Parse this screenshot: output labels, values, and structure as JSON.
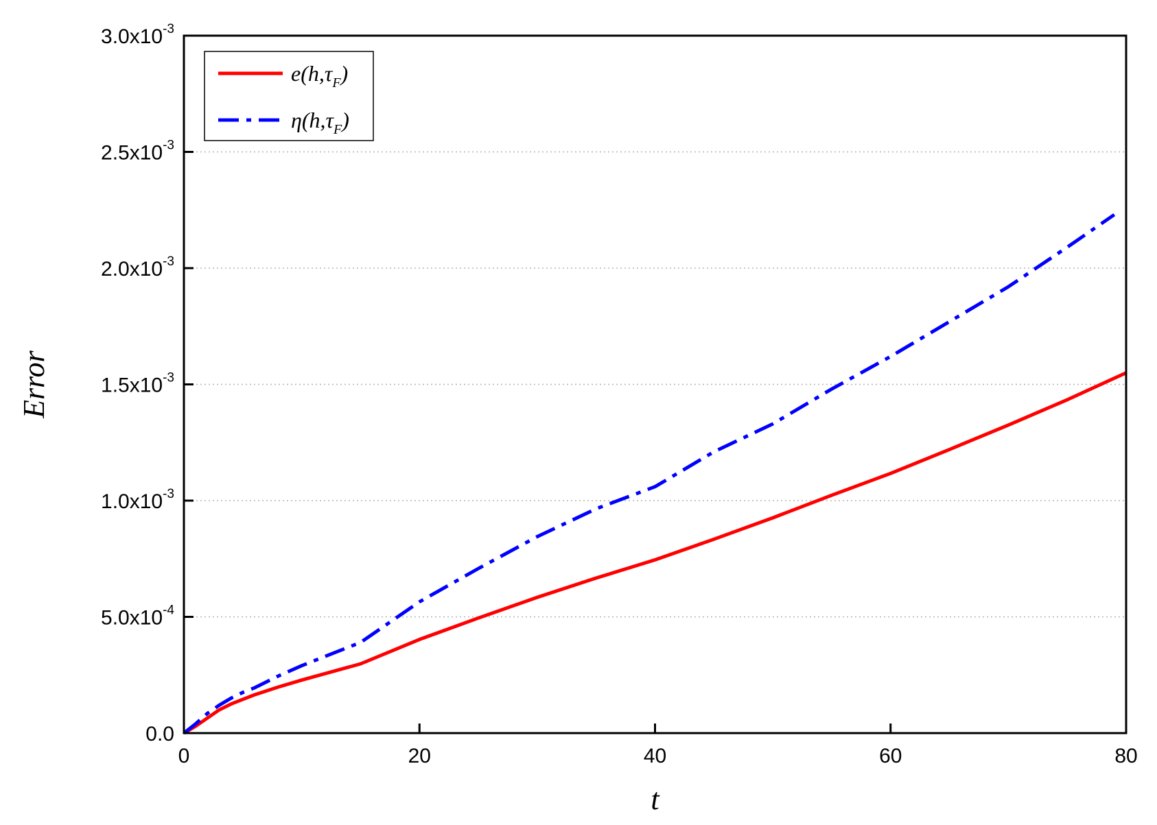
{
  "chart_data": {
    "type": "line",
    "title": "",
    "xlabel": "t",
    "ylabel": "Error",
    "xlim": [
      0,
      80
    ],
    "ylim": [
      0,
      0.003
    ],
    "x_ticks": [
      0,
      20,
      40,
      60,
      80
    ],
    "x_tick_labels": [
      "0",
      "20",
      "40",
      "60",
      "80"
    ],
    "y_ticks": [
      {
        "value": 0,
        "mantissa": "0.0",
        "exponent": ""
      },
      {
        "value": 0.0005,
        "mantissa": "5.0x10",
        "exponent": "-4"
      },
      {
        "value": 0.001,
        "mantissa": "1.0x10",
        "exponent": "-3"
      },
      {
        "value": 0.0015,
        "mantissa": "1.5x10",
        "exponent": "-3"
      },
      {
        "value": 0.002,
        "mantissa": "2.0x10",
        "exponent": "-3"
      },
      {
        "value": 0.0025,
        "mantissa": "2.5x10",
        "exponent": "-3"
      },
      {
        "value": 0.003,
        "mantissa": "3.0x10",
        "exponent": "-3"
      }
    ],
    "grid": "horizontal dotted",
    "legend_position": "top-left",
    "series": [
      {
        "name": "e(h,τF)",
        "label_main": "e(h,τ",
        "label_sub": "F",
        "label_close": ")",
        "color": "#ff0000",
        "style": "solid",
        "x": [
          0,
          1,
          2,
          3,
          4,
          5,
          6,
          8,
          10,
          12,
          15,
          20,
          25,
          30,
          35,
          40,
          45,
          50,
          55,
          60,
          65,
          70,
          75,
          80
        ],
        "y": [
          0,
          3e-05,
          6.5e-05,
          0.0001,
          0.000125,
          0.000145,
          0.000165,
          0.000198,
          0.000228,
          0.000256,
          0.000298,
          0.000403,
          0.000495,
          0.000584,
          0.000667,
          0.000745,
          0.000834,
          0.000926,
          0.001023,
          0.001117,
          0.00122,
          0.001325,
          0.001434,
          0.00155
        ]
      },
      {
        "name": "η(h,τF)",
        "label_main": "η(h,τ",
        "label_sub": "F",
        "label_close": ")",
        "color": "#0000ff",
        "style": "dash-dot",
        "x": [
          0,
          1,
          2,
          3,
          4,
          5,
          6,
          8,
          10,
          12,
          15,
          20,
          25,
          30,
          35,
          40,
          45,
          50,
          55,
          60,
          65,
          70,
          75,
          79
        ],
        "y": [
          0,
          4e-05,
          8.5e-05,
          0.00012,
          0.00015,
          0.000175,
          0.000195,
          0.000245,
          0.00029,
          0.00033,
          0.00039,
          0.000565,
          0.000708,
          0.000845,
          0.000965,
          0.00106,
          0.00121,
          0.00133,
          0.00148,
          0.00162,
          0.00177,
          0.00192,
          0.00209,
          0.00223
        ]
      }
    ]
  }
}
